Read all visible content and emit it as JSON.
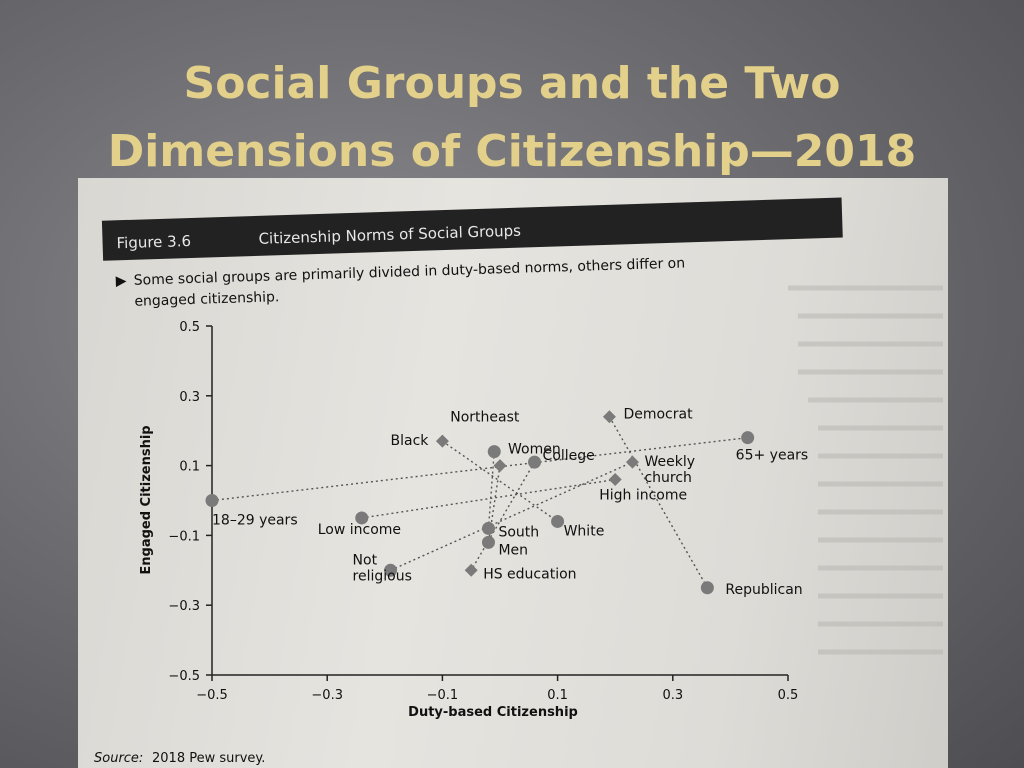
{
  "slide": {
    "title_line1": "Social Groups and the Two",
    "title_line2": "Dimensions of Citizenship—2018"
  },
  "figure": {
    "label": "Figure 3.6",
    "title": "Citizenship Norms of Social Groups",
    "caption_line1": "Some social groups are primarily divided in duty-based norms, others differ on",
    "caption_line2": "engaged citizenship.",
    "source_label": "Source:",
    "source_text": "2018 Pew survey.",
    "bullet_glyph": "▶"
  },
  "colors": {
    "title": "#e3d08a",
    "header_bar": "#222222",
    "points": "#7a7a7a"
  },
  "chart_data": {
    "type": "scatter",
    "xlabel": "Duty-based Citizenship",
    "ylabel": "Engaged Citizenship",
    "xlim": [
      -0.5,
      0.5
    ],
    "ylim": [
      -0.5,
      0.5
    ],
    "x_ticks": [
      -0.5,
      -0.3,
      -0.1,
      0.1,
      0.3,
      0.5
    ],
    "x_tick_labels": [
      "−0.5",
      "−0.3",
      "−0.1",
      "0.1",
      "0.3",
      "0.5"
    ],
    "y_ticks": [
      -0.5,
      -0.3,
      -0.1,
      0.1,
      0.3,
      0.5
    ],
    "y_tick_labels": [
      "−0.5",
      "−0.3",
      "−0.1",
      "0.1",
      "0.3",
      "0.5"
    ],
    "grid": false,
    "points": [
      {
        "label": "18–29 years",
        "x": -0.5,
        "y": 0.0,
        "marker": "circle"
      },
      {
        "label": "65+ years",
        "x": 0.43,
        "y": 0.18,
        "marker": "circle"
      },
      {
        "label": "Low income",
        "x": -0.24,
        "y": -0.05,
        "marker": "circle"
      },
      {
        "label": "High income",
        "x": 0.2,
        "y": 0.06,
        "marker": "diamond"
      },
      {
        "label": "Not religious",
        "x": -0.19,
        "y": -0.2,
        "marker": "circle"
      },
      {
        "label": "Weekly church",
        "x": 0.23,
        "y": 0.11,
        "marker": "diamond"
      },
      {
        "label": "Democrat",
        "x": 0.19,
        "y": 0.24,
        "marker": "diamond"
      },
      {
        "label": "Republican",
        "x": 0.36,
        "y": -0.25,
        "marker": "circle"
      },
      {
        "label": "Black",
        "x": -0.1,
        "y": 0.17,
        "marker": "diamond"
      },
      {
        "label": "White",
        "x": 0.1,
        "y": -0.06,
        "marker": "circle"
      },
      {
        "label": "Northeast",
        "x": -0.01,
        "y": 0.14,
        "marker": "circle"
      },
      {
        "label": "South",
        "x": -0.02,
        "y": -0.08,
        "marker": "circle"
      },
      {
        "label": "Women",
        "x": 0.0,
        "y": 0.1,
        "marker": "diamond"
      },
      {
        "label": "Men",
        "x": -0.02,
        "y": -0.12,
        "marker": "circle"
      },
      {
        "label": "College",
        "x": 0.06,
        "y": 0.11,
        "marker": "circle"
      },
      {
        "label": "HS education",
        "x": -0.05,
        "y": -0.2,
        "marker": "diamond"
      }
    ],
    "pairs": [
      [
        "18–29 years",
        "65+ years"
      ],
      [
        "Low income",
        "High income"
      ],
      [
        "Not religious",
        "Weekly church"
      ],
      [
        "Democrat",
        "Republican"
      ],
      [
        "Black",
        "White"
      ],
      [
        "Northeast",
        "South"
      ],
      [
        "Women",
        "Men"
      ],
      [
        "College",
        "HS education"
      ]
    ]
  }
}
